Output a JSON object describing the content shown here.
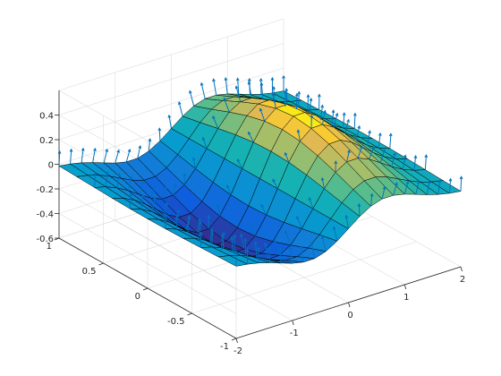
{
  "chart_data": {
    "type": "surface",
    "title": "",
    "xlabel": "",
    "ylabel": "",
    "zlabel": "",
    "xlim": [
      -2,
      2
    ],
    "ylim": [
      -1,
      1
    ],
    "zlim": [
      -0.6,
      0.6
    ],
    "x_ticks": [
      -2,
      -1,
      0,
      1,
      2
    ],
    "x_tick_labels": [
      "-2",
      "-1",
      "0",
      "1",
      "2"
    ],
    "y_ticks": [
      -1,
      -0.5,
      0,
      0.5,
      1
    ],
    "y_tick_labels": [
      "-1",
      "-0.5",
      "0",
      "0.5",
      "1"
    ],
    "z_ticks": [
      -0.6,
      -0.4,
      -0.2,
      0,
      0.2,
      0.4
    ],
    "z_tick_labels": [
      "-0.6",
      "-0.4",
      "-0.2",
      "0",
      "0.2",
      "0.4"
    ],
    "grid": true,
    "colormap": "parula",
    "surface_function": "z = x * exp(-x^2 - y^2)",
    "surface_grid": {
      "x_points": 21,
      "y_points": 11
    },
    "normals_shown": true,
    "normal_color": "#0072bd",
    "edge_color": "#000000"
  }
}
